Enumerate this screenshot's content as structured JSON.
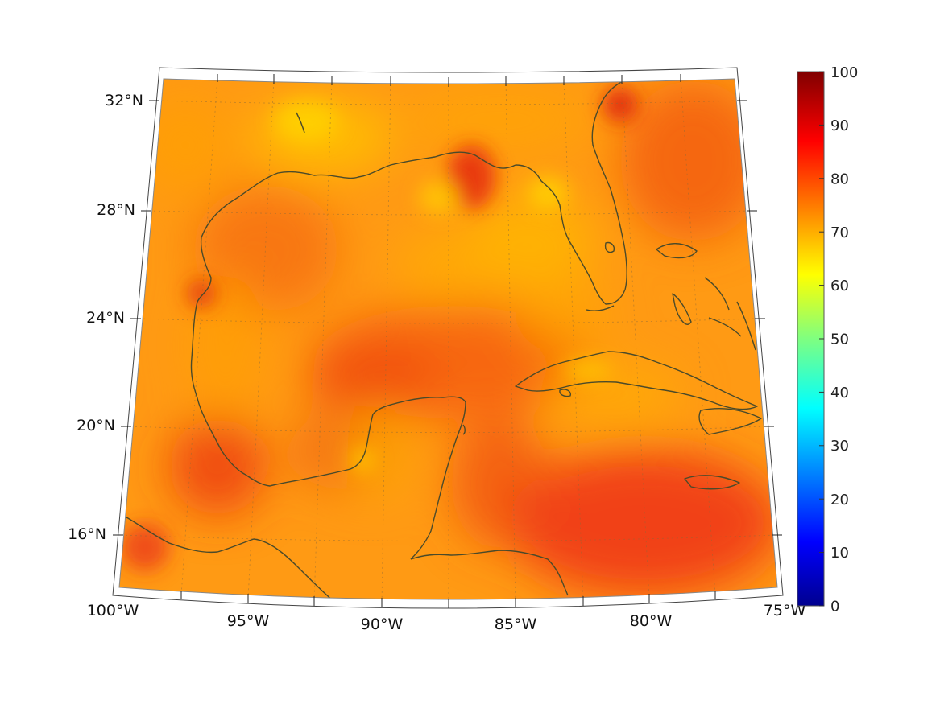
{
  "map": {
    "projection": "lambert-conformal-conic",
    "extent": {
      "lon": [
        -100,
        -75
      ],
      "lat": [
        14.5,
        33
      ]
    },
    "lat_labels": [
      "32°N",
      "28°N",
      "24°N",
      "20°N",
      "16°N"
    ],
    "lon_labels": [
      "100°W",
      "95°W",
      "90°W",
      "85°W",
      "80°W",
      "75°W"
    ],
    "field": {
      "colormap": "jet",
      "value_range": [
        0,
        100
      ],
      "typical_range": [
        65,
        92
      ]
    },
    "coastline_color": "#4a4a2a"
  },
  "colorbar": {
    "ticks": [
      "100",
      "90",
      "80",
      "70",
      "60",
      "50",
      "40",
      "30",
      "20",
      "10",
      "0"
    ],
    "min": 0,
    "max": 100
  }
}
